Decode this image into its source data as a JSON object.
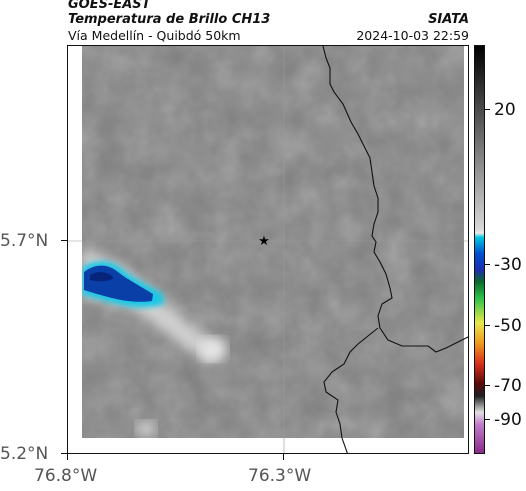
{
  "header": {
    "mission": "GOES-EAST",
    "product": "Temperatura de Brillo CH13",
    "region": "Vía Medellín - Quibdó 50km",
    "organization": "SIATA",
    "timestamp": "2024-10-03 22:59"
  },
  "axes": {
    "lat_labels": [
      "5.7°N",
      "5.2°N"
    ],
    "lon_labels": [
      "76.8°W",
      "76.3°W"
    ]
  },
  "colorbar": {
    "labels": [
      "20",
      "-30",
      "-50",
      "-70",
      "-90"
    ]
  },
  "map": {
    "marker": "star-marker",
    "colors": {
      "background_gray": "#7f7f7f",
      "cold_cloud_blue": "#0a3fa8",
      "cloud_edge_cyan": "#19c7e6",
      "border_line": "#111111"
    }
  }
}
